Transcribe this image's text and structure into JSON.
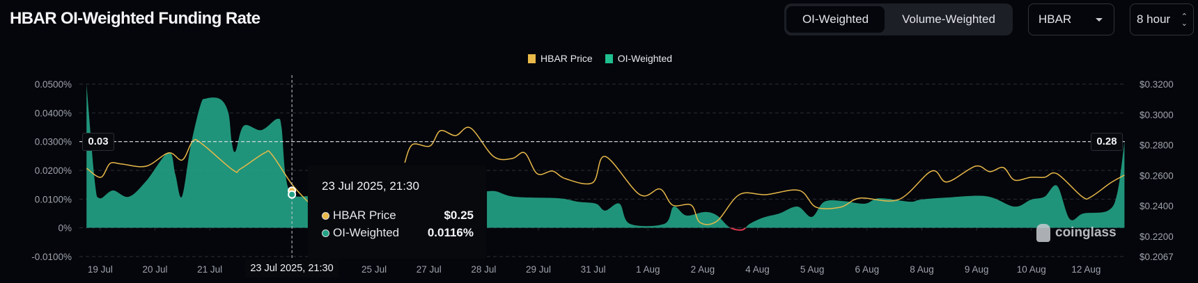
{
  "header": {
    "title": "HBAR OI-Weighted Funding Rate",
    "tabs": [
      {
        "label": "OI-Weighted",
        "active": true
      },
      {
        "label": "Volume-Weighted",
        "active": false
      }
    ],
    "asset_select": "HBAR",
    "interval_select": "8 hour"
  },
  "tooltip": {
    "date": "23 Jul 2025, 21:30",
    "rows": [
      {
        "label": "HBAR Price",
        "value": "$0.25"
      },
      {
        "label": "OI-Weighted",
        "value": "0.0116%"
      }
    ]
  },
  "crosshair": {
    "x_label": "23 Jul 2025, 21:30",
    "left_label": "0.03",
    "right_label": "0.28",
    "x_tick": 3.5,
    "left_value": 0.03,
    "right_value": 0.28
  },
  "watermark": "coinglass",
  "colors": {
    "price": "#e9b949",
    "oi": "#23a184",
    "negative": "#e0384f",
    "background": "#05060b"
  },
  "chart_data": {
    "type": "area",
    "title": "HBAR OI-Weighted Funding Rate",
    "legend": {
      "position": "top-center",
      "entries": [
        "HBAR Price",
        "OI-Weighted"
      ]
    },
    "x_ticks": [
      {
        "i": 0,
        "label": "19 Jul"
      },
      {
        "i": 1,
        "label": "20 Jul"
      },
      {
        "i": 2,
        "label": "21 Jul"
      },
      {
        "i": 5,
        "label": "25 Jul"
      },
      {
        "i": 6,
        "label": "27 Jul"
      },
      {
        "i": 7,
        "label": "28 Jul"
      },
      {
        "i": 8,
        "label": "29 Jul"
      },
      {
        "i": 9,
        "label": "31 Jul"
      },
      {
        "i": 10,
        "label": "1 Aug"
      },
      {
        "i": 11,
        "label": "2 Aug"
      },
      {
        "i": 12,
        "label": "4 Aug"
      },
      {
        "i": 13,
        "label": "5 Aug"
      },
      {
        "i": 14,
        "label": "6 Aug"
      },
      {
        "i": 15,
        "label": "8 Aug"
      },
      {
        "i": 16,
        "label": "9 Aug"
      },
      {
        "i": 17,
        "label": "10 Aug"
      },
      {
        "i": 18,
        "label": "12 Aug"
      }
    ],
    "xlim": [
      -0.38,
      18.72
    ],
    "y_left": {
      "ticks": [
        "0.0500%",
        "0.0400%",
        "0.0300%",
        "0.0200%",
        "0.0100%",
        "0%",
        "-0.0100%"
      ],
      "values": [
        0.05,
        0.04,
        0.03,
        0.02,
        0.01,
        0,
        -0.01
      ],
      "ylim": [
        -0.01,
        0.05
      ],
      "unit": "%"
    },
    "y_right": {
      "ticks": [
        "$0.3200",
        "$0.3000",
        "$0.2800",
        "$0.2600",
        "$0.2400",
        "$0.2200",
        "$0.2067"
      ],
      "values": [
        0.32,
        0.3,
        0.28,
        0.26,
        0.24,
        0.22,
        0.2067
      ],
      "ylim": [
        0.2067,
        0.32
      ],
      "unit": "$"
    },
    "grid": true,
    "series": [
      {
        "name": "OI-Weighted",
        "axis": "left",
        "kind": "area",
        "segments": [
          [
            [
              -0.25,
              0.05
            ],
            [
              -0.1,
              0.0163
            ],
            [
              -0.01,
              0.0103
            ],
            [
              0.23,
              0.013
            ],
            [
              0.52,
              0.0108
            ],
            [
              0.84,
              0.0163
            ],
            [
              1.25,
              0.0263
            ],
            [
              1.37,
              0.0187
            ],
            [
              1.49,
              0.0108
            ],
            [
              1.65,
              0.0283
            ],
            [
              1.83,
              0.0427
            ],
            [
              1.93,
              0.045
            ],
            [
              2.19,
              0.0448
            ],
            [
              2.34,
              0.04
            ],
            [
              2.4,
              0.03
            ],
            [
              2.47,
              0.0266
            ],
            [
              2.62,
              0.0355
            ],
            [
              2.94,
              0.034
            ],
            [
              3.23,
              0.0379
            ],
            [
              3.31,
              0.035
            ],
            [
              3.38,
              0.0187
            ],
            [
              3.5,
              0.0116
            ],
            [
              3.79,
              0.011
            ]
          ],
          [
            [
              7.06,
              0.0127
            ],
            [
              7.23,
              0.0127
            ],
            [
              7.57,
              0.0108
            ],
            [
              8.37,
              0.0103
            ],
            [
              8.72,
              0.0091
            ],
            [
              9.05,
              0.0084
            ],
            [
              9.22,
              0.006
            ],
            [
              9.48,
              0.0084
            ],
            [
              9.67,
              0.0014
            ],
            [
              10.3,
              0.0014
            ],
            [
              10.47,
              0.0074
            ],
            [
              10.7,
              0.0043
            ],
            [
              11.04,
              0.0055
            ],
            [
              11.26,
              0.0043
            ],
            [
              11.49,
              0.0002
            ],
            [
              11.72,
              -0.0007
            ],
            [
              11.86,
              0.0014
            ],
            [
              12.11,
              0.0036
            ],
            [
              12.4,
              0.005
            ],
            [
              12.73,
              0.0074
            ],
            [
              12.99,
              0.0038
            ],
            [
              13.22,
              0.0091
            ],
            [
              13.57,
              0.0093
            ],
            [
              13.96,
              0.0084
            ],
            [
              14.22,
              0.0103
            ],
            [
              14.78,
              0.0091
            ],
            [
              14.97,
              0.0098
            ],
            [
              15.43,
              0.0105
            ],
            [
              16.18,
              0.011
            ],
            [
              16.69,
              0.0074
            ],
            [
              16.99,
              0.0098
            ],
            [
              17.24,
              0.0108
            ],
            [
              17.47,
              0.0146
            ],
            [
              17.7,
              0.0031
            ],
            [
              17.95,
              0.005
            ],
            [
              18.4,
              0.006
            ],
            [
              18.57,
              0.0122
            ],
            [
              18.7,
              0.03
            ]
          ]
        ]
      },
      {
        "name": "HBAR Price",
        "axis": "right",
        "kind": "line",
        "segments": [
          [
            [
              -0.25,
              0.2648
            ],
            [
              0.01,
              0.2588
            ],
            [
              0.18,
              0.2679
            ],
            [
              0.39,
              0.2675
            ],
            [
              0.84,
              0.2661
            ],
            [
              1.25,
              0.2748
            ],
            [
              1.5,
              0.2702
            ],
            [
              1.69,
              0.2826
            ],
            [
              1.86,
              0.2807
            ],
            [
              2.43,
              0.2634
            ],
            [
              2.56,
              0.2643
            ],
            [
              3.0,
              0.2748
            ],
            [
              3.13,
              0.2739
            ],
            [
              3.5,
              0.2542
            ],
            [
              3.79,
              0.2428
            ]
          ],
          [
            [
              5.56,
              0.2684
            ],
            [
              5.7,
              0.2803
            ],
            [
              6.02,
              0.2794
            ],
            [
              6.21,
              0.2894
            ],
            [
              6.49,
              0.2862
            ],
            [
              6.76,
              0.2912
            ],
            [
              7.18,
              0.2725
            ],
            [
              7.52,
              0.2711
            ],
            [
              7.75,
              0.2748
            ],
            [
              7.98,
              0.2611
            ],
            [
              8.26,
              0.2629
            ],
            [
              8.49,
              0.2579
            ],
            [
              8.99,
              0.2552
            ],
            [
              9.22,
              0.2725
            ],
            [
              9.85,
              0.2474
            ],
            [
              10.22,
              0.2511
            ],
            [
              10.45,
              0.2405
            ],
            [
              10.79,
              0.2405
            ],
            [
              10.95,
              0.2291
            ],
            [
              11.26,
              0.23
            ],
            [
              11.67,
              0.2474
            ],
            [
              12.16,
              0.2474
            ],
            [
              12.76,
              0.2502
            ],
            [
              13.07,
              0.2392
            ],
            [
              13.52,
              0.2392
            ],
            [
              13.87,
              0.2451
            ],
            [
              14.58,
              0.2442
            ],
            [
              15.18,
              0.2629
            ],
            [
              15.46,
              0.2557
            ],
            [
              15.98,
              0.2661
            ],
            [
              16.24,
              0.2625
            ],
            [
              16.49,
              0.2652
            ],
            [
              16.69,
              0.257
            ],
            [
              16.99,
              0.2588
            ],
            [
              17.24,
              0.2588
            ],
            [
              17.47,
              0.2611
            ],
            [
              17.93,
              0.246
            ],
            [
              18.09,
              0.246
            ],
            [
              18.45,
              0.2552
            ],
            [
              18.7,
              0.2602
            ]
          ]
        ]
      }
    ],
    "highlight_point": {
      "x_tick": 3.5,
      "price": 0.25,
      "oi": 0.0116
    }
  }
}
